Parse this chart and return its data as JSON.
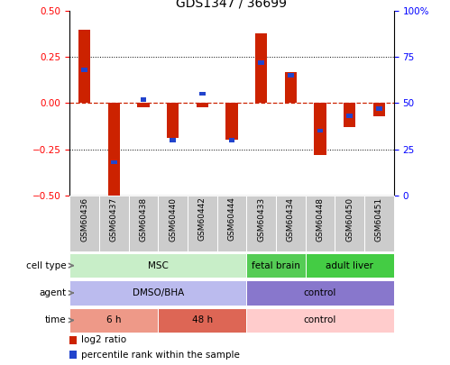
{
  "title": "GDS1347 / 36699",
  "samples": [
    "GSM60436",
    "GSM60437",
    "GSM60438",
    "GSM60440",
    "GSM60442",
    "GSM60444",
    "GSM60433",
    "GSM60434",
    "GSM60448",
    "GSM60450",
    "GSM60451"
  ],
  "log2_ratio": [
    0.4,
    -0.5,
    -0.02,
    -0.19,
    -0.02,
    -0.2,
    0.38,
    0.17,
    -0.28,
    -0.13,
    -0.07
  ],
  "percentile_rank": [
    68,
    18,
    52,
    30,
    55,
    30,
    72,
    65,
    35,
    43,
    47
  ],
  "ylim_left": [
    -0.5,
    0.5
  ],
  "yticks_left": [
    -0.5,
    -0.25,
    0,
    0.25,
    0.5
  ],
  "yticks_right": [
    0,
    25,
    50,
    75,
    100
  ],
  "bar_color": "#cc2200",
  "pct_color": "#2244cc",
  "zero_line_color": "#cc2200",
  "cell_type_groups": [
    {
      "label": "MSC",
      "start": 0,
      "end": 6,
      "color": "#c8eec8"
    },
    {
      "label": "fetal brain",
      "start": 6,
      "end": 8,
      "color": "#55cc55"
    },
    {
      "label": "adult liver",
      "start": 8,
      "end": 11,
      "color": "#44cc44"
    }
  ],
  "agent_groups": [
    {
      "label": "DMSO/BHA",
      "start": 0,
      "end": 6,
      "color": "#bbbbee"
    },
    {
      "label": "control",
      "start": 6,
      "end": 11,
      "color": "#8877cc"
    }
  ],
  "time_groups": [
    {
      "label": "6 h",
      "start": 0,
      "end": 3,
      "color": "#ee9988"
    },
    {
      "label": "48 h",
      "start": 3,
      "end": 6,
      "color": "#dd6655"
    },
    {
      "label": "control",
      "start": 6,
      "end": 11,
      "color": "#ffcccc"
    }
  ],
  "row_labels": [
    "cell type",
    "agent",
    "time"
  ],
  "legend": [
    {
      "label": "log2 ratio",
      "color": "#cc2200"
    },
    {
      "label": "percentile rank within the sample",
      "color": "#2244cc"
    }
  ]
}
